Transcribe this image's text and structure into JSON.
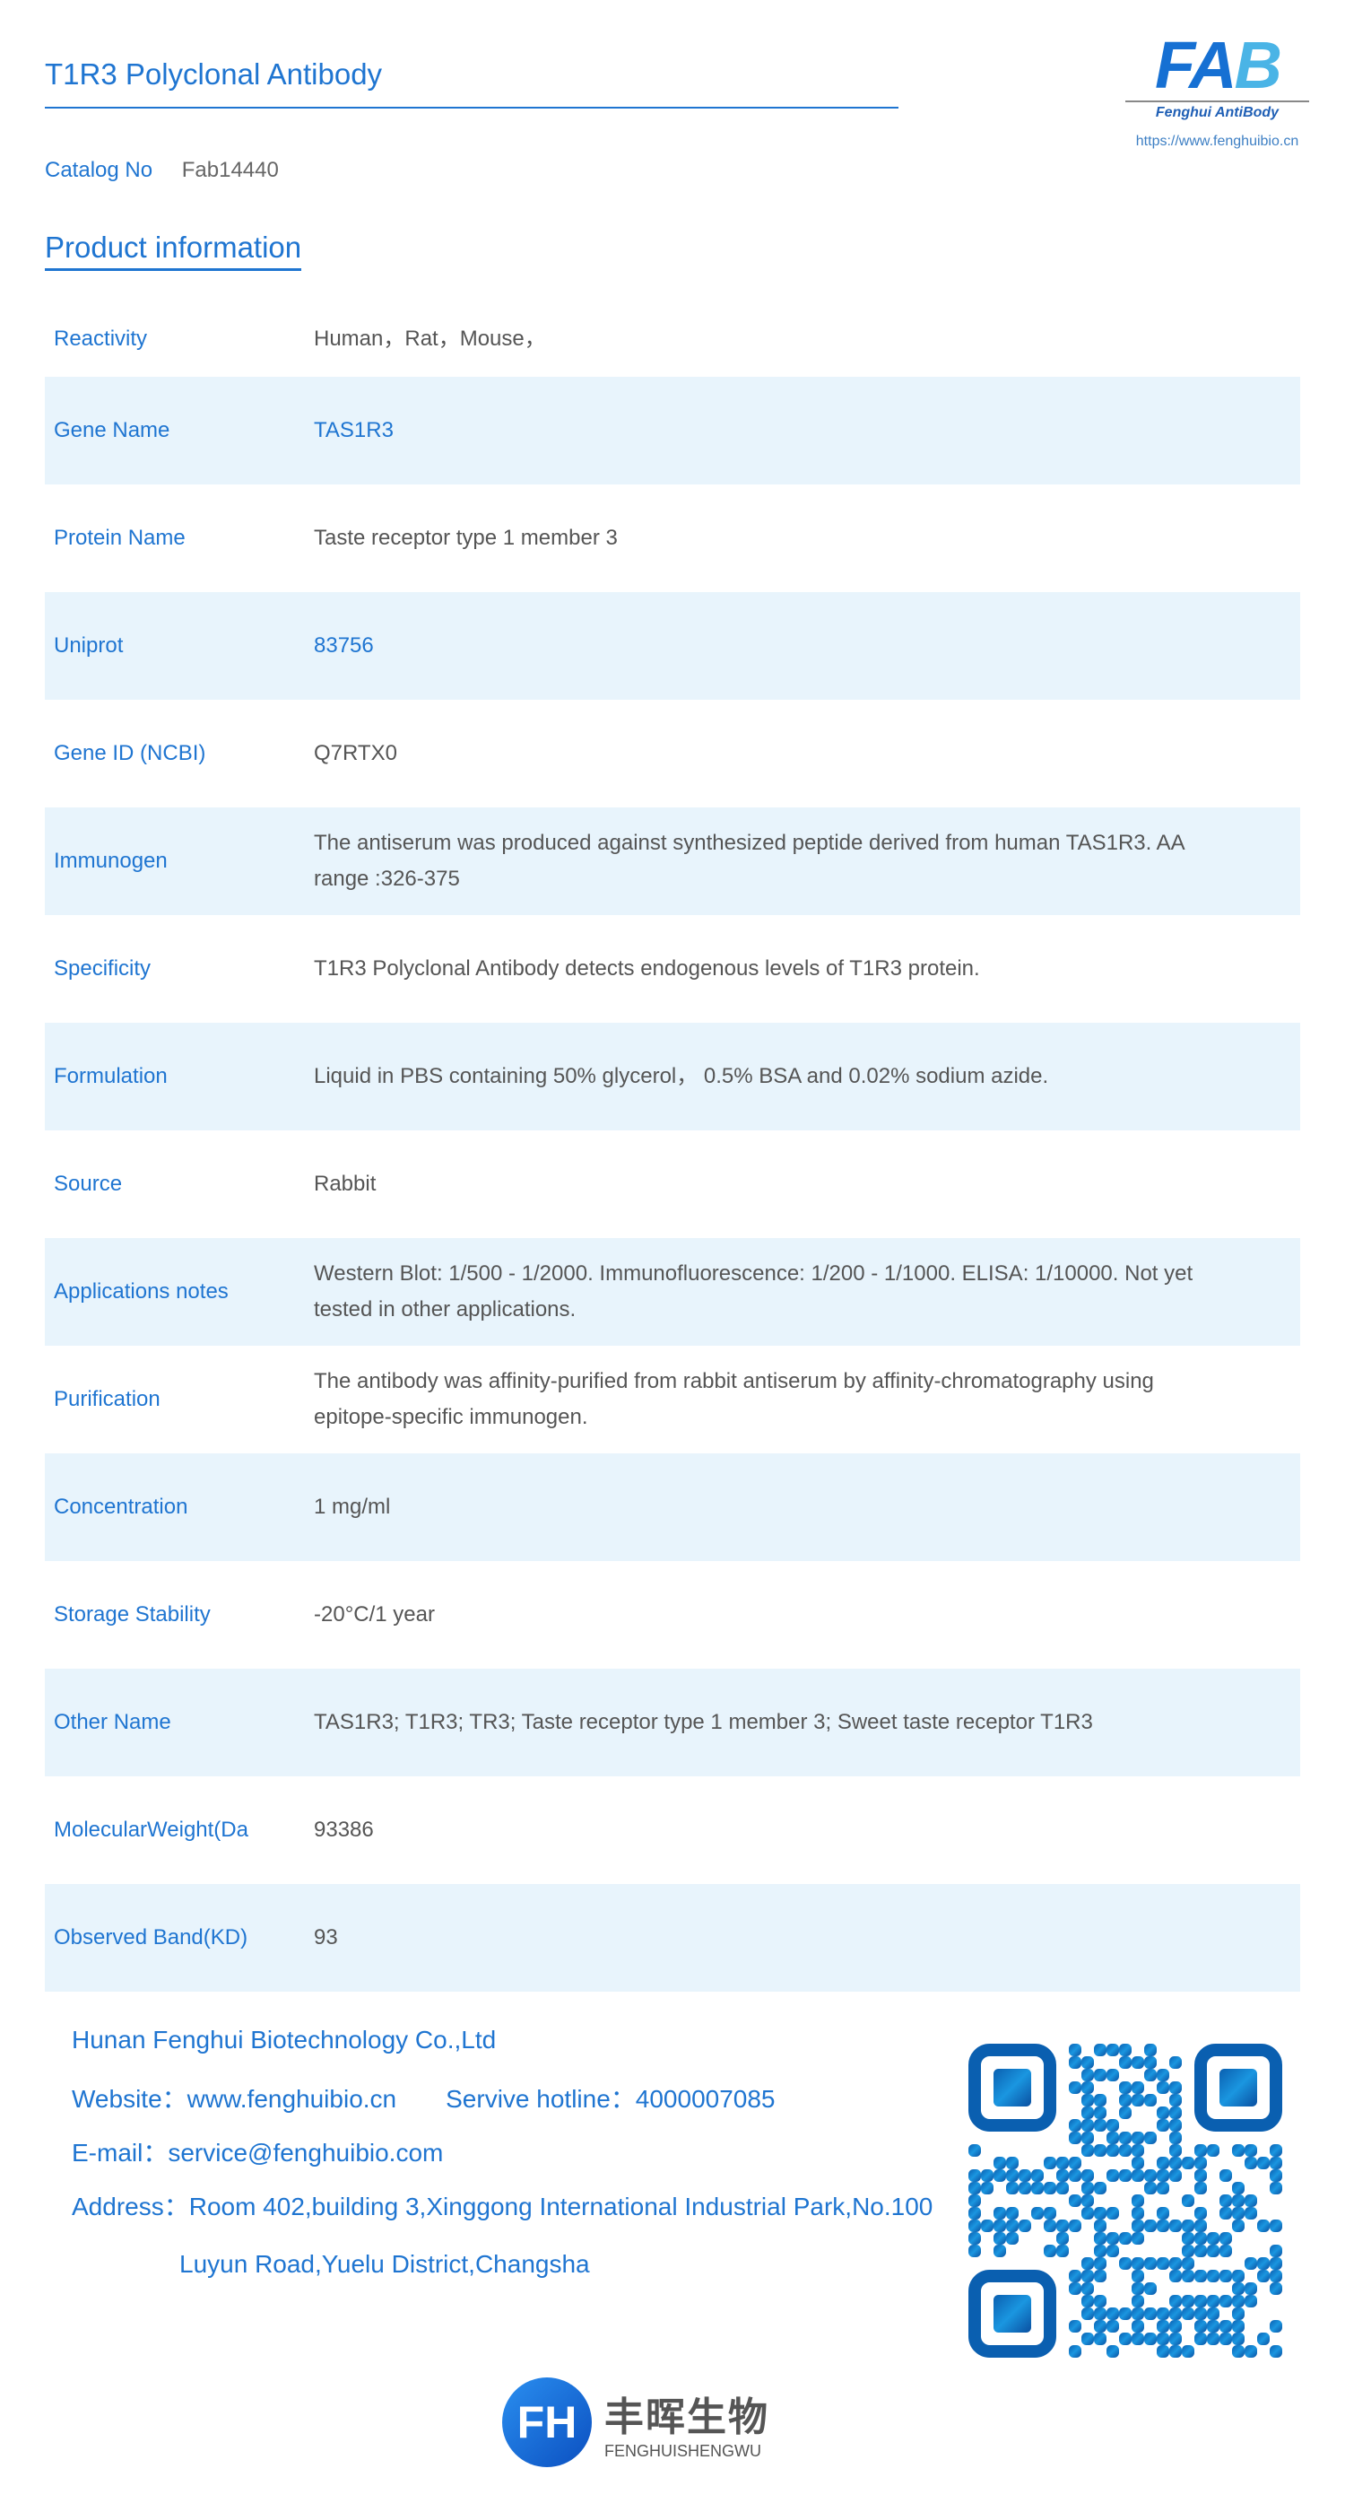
{
  "header": {
    "title": "T1R3 Polyclonal Antibody",
    "logo_text": "FAB",
    "logo_subtitle": "Fenghui AntiBody",
    "logo_url": "https://www.fenghuibio.cn"
  },
  "catalog": {
    "label": "Catalog No",
    "value": "Fab14440"
  },
  "section_title": "Product information",
  "rows": [
    {
      "label": "Reactivity",
      "value": "Human，Rat，Mouse，"
    },
    {
      "label": "Gene Name",
      "value": "TAS1R3"
    },
    {
      "label": "Protein Name",
      "value": "Taste receptor type 1 member 3"
    },
    {
      "label": "Uniprot",
      "value": "83756"
    },
    {
      "label": "Gene ID (NCBI)",
      "value": "Q7RTX0"
    },
    {
      "label": "Immunogen",
      "value": "The antiserum was produced against synthesized peptide derived from human TAS1R3. AA range :326-375"
    },
    {
      "label": "Specificity",
      "value": "T1R3 Polyclonal Antibody detects endogenous levels of T1R3 protein."
    },
    {
      "label": "Formulation",
      "value": "Liquid in PBS containing 50% glycerol， 0.5% BSA and 0.02% sodium azide."
    },
    {
      "label": "Source",
      "value": "Rabbit"
    },
    {
      "label": "Applications notes",
      "value": "Western Blot: 1/500 - 1/2000. Immunofluorescence: 1/200 - 1/1000. ELISA: 1/10000. Not yet tested in other applications."
    },
    {
      "label": "Purification",
      "value": "The antibody was affinity-purified from rabbit antiserum by affinity-chromatography using epitope-specific immunogen."
    },
    {
      "label": "Concentration",
      "value": "1 mg/ml"
    },
    {
      "label": "Storage Stability",
      "value": "-20°C/1 year"
    },
    {
      "label": "Other Name",
      "value": "TAS1R3; T1R3; TR3; Taste receptor type 1 member 3; Sweet taste receptor T1R3"
    },
    {
      "label": "MolecularWeight(Da",
      "value": "93386"
    },
    {
      "label": "Observed Band(KD)",
      "value": "93"
    }
  ],
  "footer": {
    "company": "Hunan Fenghui Biotechnology Co.,Ltd",
    "website": "Website：www.fenghuibio.cn",
    "hotline": "Servive hotline：4000007085",
    "email": "E-mail：service@fenghuibio.com",
    "address1": "Address：Room 402,building 3,Xinggong International Industrial Park,No.100",
    "address2": "Luyun Road,Yuelu District,Changsha"
  },
  "bottom_logo": {
    "mark": "FH",
    "cn": "丰晖生物",
    "en": "FENGHUISHENGWU"
  }
}
